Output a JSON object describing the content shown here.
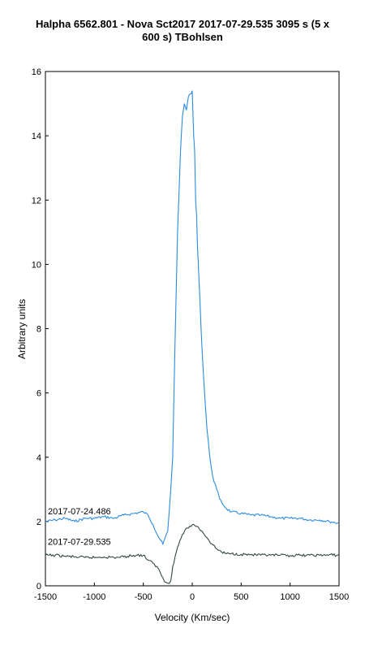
{
  "chart_data": {
    "type": "line",
    "title_line1": "Halpha 6562.801 - Nova Sct2017   2017-07-29.535  3095 s (5 x",
    "title_line2": "600 s)  TBohlsen",
    "xlabel": "Velocity (Km/sec)",
    "ylabel": "Arbitrary units",
    "xlim": [
      -1500,
      1500
    ],
    "ylim": [
      0,
      16
    ],
    "xticks": [
      -1500,
      -1000,
      -500,
      0,
      500,
      1000,
      1500
    ],
    "yticks": [
      0,
      2,
      4,
      6,
      8,
      10,
      12,
      14,
      16
    ],
    "grid": false,
    "annotations": [
      {
        "text": "2017-07-24.486",
        "x": -1500,
        "y": 2.15
      },
      {
        "text": "2017-07-29.535",
        "x": -1500,
        "y": 1.2
      }
    ],
    "series": [
      {
        "color": "#2a8be0",
        "x": [
          -1500,
          -1400,
          -1300,
          -1200,
          -1100,
          -1000,
          -900,
          -800,
          -700,
          -600,
          -500,
          -450,
          -400,
          -350,
          -300,
          -250,
          -230,
          -200,
          -180,
          -150,
          -120,
          -100,
          -80,
          -60,
          -40,
          -20,
          0,
          15,
          25,
          35,
          45,
          55,
          70,
          90,
          110,
          130,
          150,
          180,
          210,
          250,
          280,
          300,
          350,
          400,
          500,
          600,
          700,
          800,
          900,
          1000,
          1100,
          1200,
          1300,
          1400,
          1500
        ],
        "y": [
          2.0,
          2.05,
          2.1,
          2.0,
          2.1,
          2.1,
          2.15,
          2.1,
          2.2,
          2.25,
          2.3,
          2.2,
          1.9,
          1.55,
          1.3,
          1.7,
          2.5,
          4.0,
          7.0,
          11.0,
          13.5,
          14.6,
          15.0,
          14.8,
          15.2,
          15.3,
          15.4,
          14.0,
          13.5,
          12.0,
          11.5,
          10.5,
          9.5,
          8.0,
          6.8,
          5.8,
          4.9,
          4.0,
          3.4,
          3.0,
          2.7,
          2.6,
          2.4,
          2.3,
          2.25,
          2.2,
          2.2,
          2.15,
          2.1,
          2.1,
          2.1,
          2.05,
          2.05,
          2.0,
          1.95
        ]
      },
      {
        "color": "#304848",
        "x": [
          -1500,
          -1400,
          -1300,
          -1200,
          -1100,
          -1000,
          -900,
          -800,
          -700,
          -600,
          -500,
          -450,
          -400,
          -350,
          -300,
          -280,
          -250,
          -220,
          -200,
          -150,
          -100,
          -50,
          0,
          50,
          100,
          150,
          200,
          250,
          300,
          350,
          400,
          500,
          600,
          700,
          800,
          900,
          1000,
          1100,
          1200,
          1300,
          1400,
          1500
        ],
        "y": [
          0.95,
          0.95,
          0.92,
          0.9,
          0.88,
          0.88,
          0.9,
          0.88,
          0.9,
          0.95,
          0.95,
          0.8,
          0.7,
          0.55,
          0.25,
          0.12,
          0.08,
          0.15,
          0.6,
          1.2,
          1.6,
          1.8,
          1.9,
          1.85,
          1.7,
          1.5,
          1.3,
          1.15,
          1.05,
          1.0,
          1.0,
          0.98,
          0.97,
          0.95,
          0.95,
          0.95,
          0.94,
          0.95,
          0.95,
          0.95,
          0.96,
          0.95
        ]
      }
    ]
  }
}
